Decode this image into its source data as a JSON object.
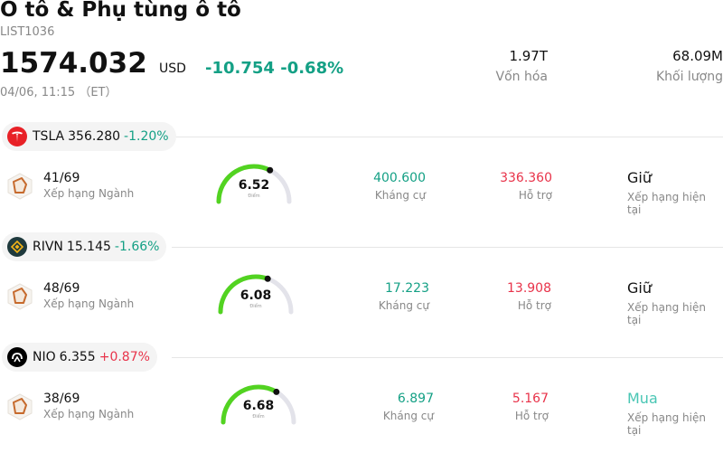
{
  "header": {
    "title": "Ô tô & Phụ tùng ô tô",
    "code": "LIST1036",
    "price": "1574.032",
    "currency": "USD",
    "change": "-10.754",
    "change_pct": "-0.68%",
    "timestamp": "04/06, 11:15 （ET）",
    "market_cap_value": "1.97T",
    "market_cap_label": "Vốn hóa",
    "volume_value": "68.09M",
    "volume_label": "Khối lượng"
  },
  "stocks": [
    {
      "symbol": "TSLA",
      "price": "356.280",
      "change_pct": "-1.20%",
      "logo": "tesla-logo-icon",
      "logo_color": "#e82127",
      "rank_value": "41/69",
      "rank_label": "Xếp hạng Ngành",
      "score": "6.52",
      "score_label": "Điểm",
      "score_fraction": 0.65,
      "resistance_value": "400.600",
      "resistance_label": "Kháng cự",
      "support_value": "336.360",
      "support_label": "Hỗ trợ",
      "rating": "Giữ",
      "rating_label": "Xếp hạng hiện tại"
    },
    {
      "symbol": "RIVN",
      "price": "15.145",
      "change_pct": "-1.66%",
      "logo": "rivian-logo-icon",
      "logo_color": "#1f3a3d",
      "rank_value": "48/69",
      "rank_label": "Xếp hạng Ngành",
      "score": "6.08",
      "score_label": "Điểm",
      "score_fraction": 0.61,
      "resistance_value": "17.223",
      "resistance_label": "Kháng cự",
      "support_value": "13.908",
      "support_label": "Hỗ trợ",
      "rating": "Giữ",
      "rating_label": "Xếp hạng hiện tại"
    },
    {
      "symbol": "NIO",
      "price": "6.355",
      "change_pct": "+0.87%",
      "logo": "nio-logo-icon",
      "logo_color": "#000000",
      "rank_value": "38/69",
      "rank_label": "Xếp hạng Ngành",
      "score": "6.68",
      "score_label": "Điểm",
      "score_fraction": 0.67,
      "resistance_value": "6.897",
      "resistance_label": "Kháng cự",
      "support_value": "5.167",
      "support_label": "Hỗ trợ",
      "rating": "Mua",
      "rating_label": "Xếp hạng hiện tại"
    }
  ],
  "colors": {
    "negative": "#14a085",
    "positive": "#e8334a",
    "gauge": "#52d321",
    "buy": "#49c6b4"
  }
}
